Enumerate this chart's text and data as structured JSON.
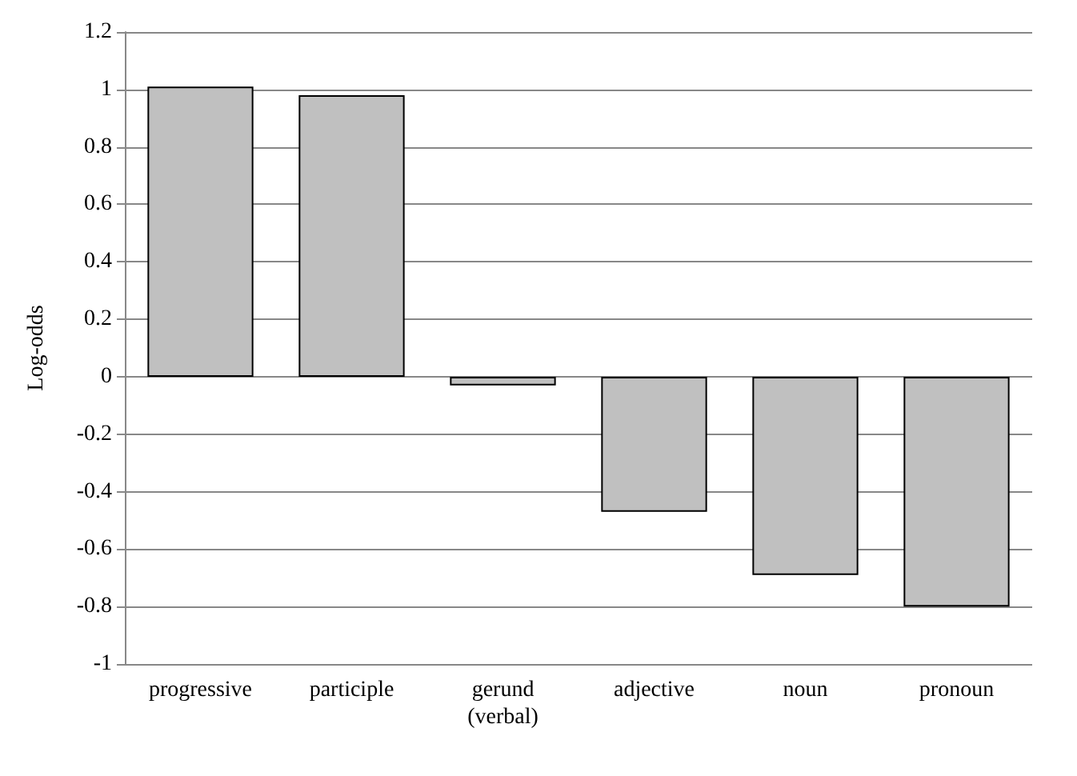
{
  "chart_data": {
    "type": "bar",
    "ylabel": "Log-odds",
    "categories": [
      "progressive",
      "participle",
      "gerund\n(verbal)",
      "adjective",
      "noun",
      "pronoun"
    ],
    "values": [
      1.01,
      0.98,
      -0.03,
      -0.47,
      -0.69,
      -0.8
    ],
    "color": "#c0c0c0",
    "ylim": [
      -1,
      1.2
    ],
    "yticks": [
      -1,
      -0.8,
      -0.6,
      -0.4,
      -0.2,
      0,
      0.2,
      0.4,
      0.6,
      0.8,
      1,
      1.2
    ],
    "grid": "y"
  }
}
